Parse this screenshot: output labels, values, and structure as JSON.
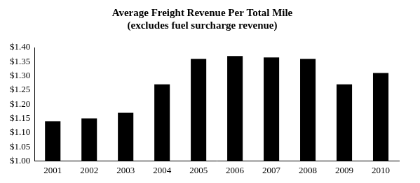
{
  "chart_data": {
    "type": "bar",
    "title": "Average Freight Revenue Per Total Mile",
    "subtitle": "(excludes fuel surcharge revenue)",
    "categories": [
      "2001",
      "2002",
      "2003",
      "2004",
      "2005",
      "2006",
      "2007",
      "2008",
      "2009",
      "2010"
    ],
    "values": [
      1.14,
      1.15,
      1.17,
      1.27,
      1.36,
      1.37,
      1.365,
      1.36,
      1.27,
      1.31
    ],
    "color": "#000000",
    "ylim": [
      1.0,
      1.4
    ],
    "yticks": [
      {
        "value": 1.0,
        "label": "$1.00"
      },
      {
        "value": 1.05,
        "label": "$1.05"
      },
      {
        "value": 1.1,
        "label": "$1.10"
      },
      {
        "value": 1.15,
        "label": "$1.15"
      },
      {
        "value": 1.2,
        "label": "$1.20"
      },
      {
        "value": 1.25,
        "label": "$1.25"
      },
      {
        "value": 1.3,
        "label": "$1.30"
      },
      {
        "value": 1.35,
        "label": "$1.35"
      },
      {
        "value": 1.4,
        "label": "$1.40"
      }
    ],
    "grid": false
  }
}
